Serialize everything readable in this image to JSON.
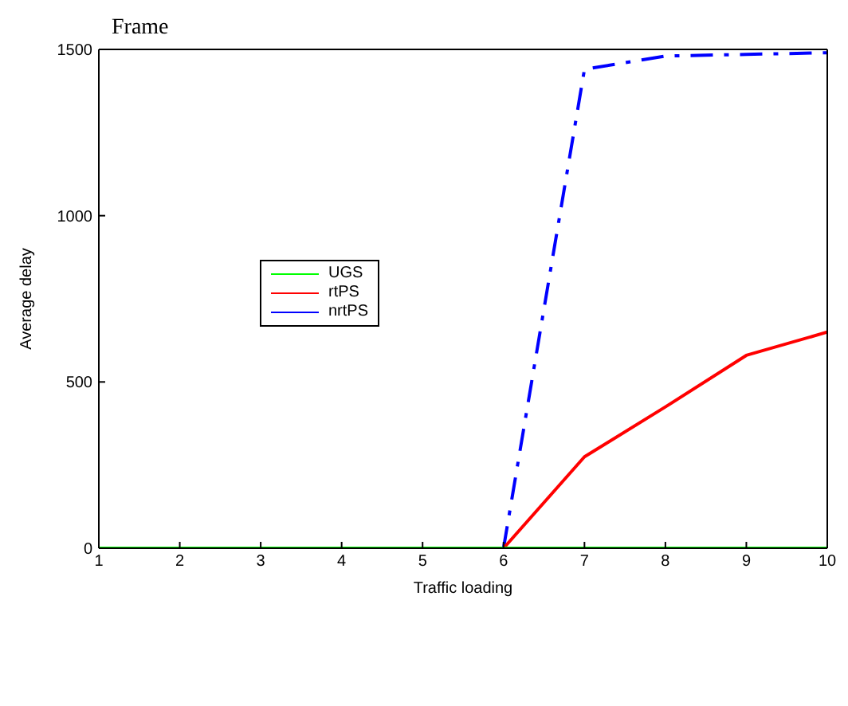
{
  "chart_data": {
    "type": "line",
    "title": "Frame",
    "xlabel": "Traffic loading",
    "ylabel": "Average delay",
    "x": [
      1,
      2,
      3,
      4,
      5,
      6,
      7,
      8,
      9,
      10
    ],
    "series": [
      {
        "name": "UGS",
        "color": "#00ff00",
        "values": [
          0,
          0,
          0,
          0,
          0,
          0,
          0,
          0,
          0,
          0
        ]
      },
      {
        "name": "rtPS",
        "color": "#ff0000",
        "values": [
          null,
          null,
          null,
          null,
          null,
          0,
          275,
          425,
          580,
          650
        ]
      },
      {
        "name": "nrtPS",
        "color": "#0000ff",
        "line_style": "dashed",
        "values": [
          null,
          null,
          null,
          null,
          null,
          0,
          1440,
          1480,
          1485,
          1490
        ]
      }
    ],
    "xlim": [
      1,
      10
    ],
    "xticks": [
      1,
      2,
      3,
      4,
      5,
      6,
      7,
      8,
      9,
      10
    ],
    "ylim": [
      0,
      1500
    ],
    "yticks": [
      0,
      500,
      1000,
      1500
    ],
    "grid": false,
    "legend": "left",
    "marker": "none",
    "line_style": "solid"
  }
}
